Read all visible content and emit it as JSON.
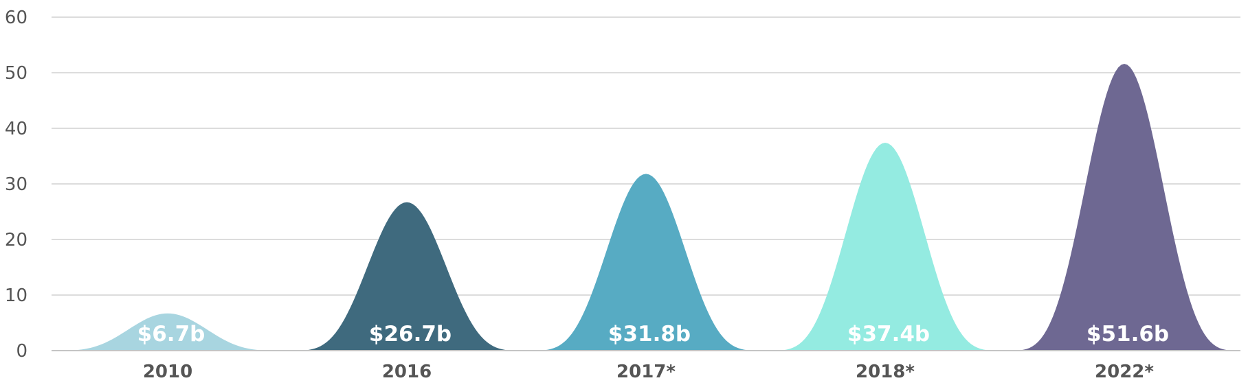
{
  "chart_data": {
    "type": "area",
    "title": "",
    "xlabel": "",
    "ylabel": "",
    "ylim": [
      0,
      60
    ],
    "yticks": [
      0,
      10,
      20,
      30,
      40,
      50,
      60
    ],
    "grid": true,
    "categories": [
      "2010",
      "2016",
      "2017*",
      "2018*",
      "2022*"
    ],
    "values": [
      6.7,
      26.7,
      31.8,
      37.4,
      51.6
    ],
    "data_labels": [
      "$6.7b",
      "$26.7b",
      "$31.8b",
      "$37.4b",
      "$51.6b"
    ],
    "colors": [
      "#a8d5e0",
      "#3f6a7e",
      "#57abc3",
      "#94ebe1",
      "#6e6892"
    ]
  }
}
